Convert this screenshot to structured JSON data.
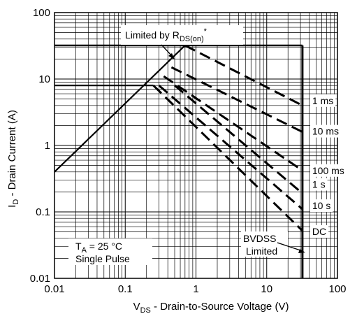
{
  "chart_data": {
    "type": "line",
    "x_scale": "log",
    "y_scale": "log",
    "xlim": [
      0.01,
      100
    ],
    "ylim": [
      0.01,
      100
    ],
    "grid": true,
    "x_ticks": [
      "0.01",
      "0.1",
      "1",
      "10",
      "100"
    ],
    "y_ticks": [
      "100",
      "10",
      "1",
      "0.1",
      "0.01"
    ],
    "xlabel": {
      "main": "V",
      "sub": "DS",
      "rest": " - Drain-to-Source Voltage (V)"
    },
    "ylabel": {
      "main": "I",
      "sub": "D",
      "rest": " - Drain Current (A)"
    },
    "limits": {
      "current_max_A": 32,
      "current_short_A": 8,
      "bvdss_V": 32,
      "rdson_line": {
        "x": [
          0.01,
          0.7
        ],
        "y": [
          0.4,
          32
        ]
      }
    },
    "series": [
      {
        "name": "1 ms",
        "x": [
          0.7,
          32
        ],
        "y": [
          32,
          4.0
        ]
      },
      {
        "name": "10 ms",
        "x": [
          0.45,
          32
        ],
        "y": [
          15,
          1.6
        ]
      },
      {
        "name": "100 ms",
        "x": [
          0.35,
          32
        ],
        "y": [
          11,
          0.42
        ]
      },
      {
        "name": "1 s",
        "x": [
          0.5,
          32
        ],
        "y": [
          8,
          0.19
        ]
      },
      {
        "name": "10 s",
        "x": [
          0.3,
          32
        ],
        "y": [
          8,
          0.11
        ]
      },
      {
        "name": "DC",
        "x": [
          0.25,
          32
        ],
        "y": [
          8,
          0.052
        ]
      }
    ],
    "annotations": {
      "rdson": {
        "text": "Limited by R",
        "sub": "DS(on)",
        "sup": "*"
      },
      "ta_main": "T",
      "ta_sub": "A",
      "ta_rest": " = 25 °C",
      "pulse": "Single Pulse",
      "bvdss_line1": "BVDSS",
      "bvdss_line2": "Limited"
    }
  }
}
